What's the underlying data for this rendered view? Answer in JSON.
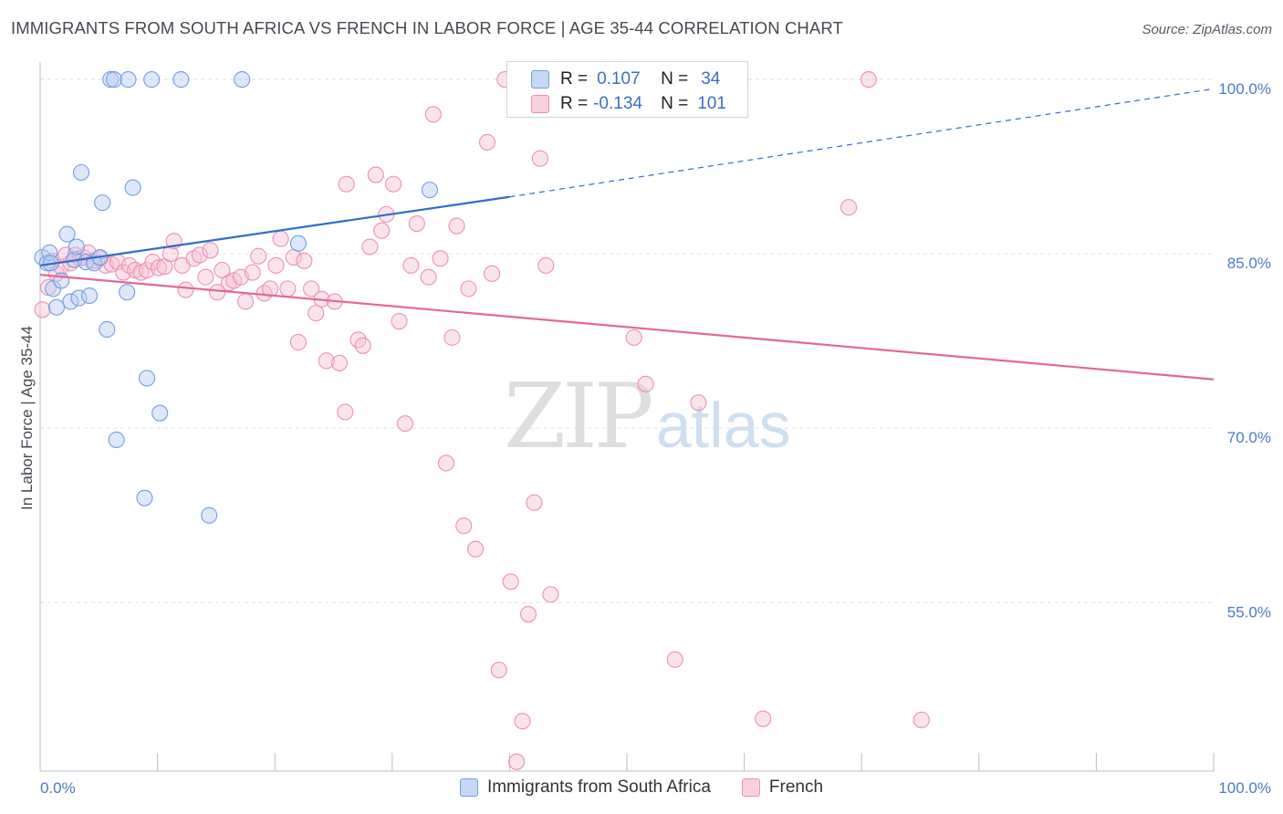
{
  "title": "IMMIGRANTS FROM SOUTH AFRICA VS FRENCH IN LABOR FORCE | AGE 35-44 CORRELATION CHART",
  "source": "Source: ZipAtlas.com",
  "watermark": {
    "zip": "ZIP",
    "atlas": "atlas"
  },
  "colors": {
    "blue": "#6f9fe3",
    "blue_fill": "#b5cdf3",
    "pink": "#ec90b3",
    "pink_fill": "#f6c1d4",
    "blue_line": "#2f6dcb",
    "pink_line": "#e2689a",
    "tick": "#4a7bc8"
  },
  "stats": {
    "row1": {
      "r_label": "R =",
      "r_value": "0.107",
      "n_label": "N =",
      "n_value": "34"
    },
    "row2": {
      "r_label": "R =",
      "r_value": "-0.134",
      "n_label": "N =",
      "n_value": "101"
    }
  },
  "legend": {
    "series1": "Immigrants from South Africa",
    "series2": "French"
  },
  "chart_data": {
    "type": "scatter",
    "title": "IMMIGRANTS FROM SOUTH AFRICA VS FRENCH IN LABOR FORCE | AGE 35-44 CORRELATION CHART",
    "xlabel": "",
    "ylabel": "In Labor Force | Age 35-44",
    "xlim": [
      0,
      100
    ],
    "ylim": [
      40.5,
      101.5
    ],
    "x_tick_labels": [
      "0.0%",
      "100.0%"
    ],
    "y_ticks": [
      55,
      70,
      85,
      100
    ],
    "y_tick_labels": [
      "55.0%",
      "70.0%",
      "85.0%",
      "100.0%"
    ],
    "grid": true,
    "legend_position": "bottom",
    "series": [
      {
        "name": "Immigrants from South Africa",
        "color": "#6f9fe3",
        "trend": {
          "x": [
            0,
            40
          ],
          "y": [
            84.0,
            89.9
          ],
          "dashed_to": [
            100,
            99.2
          ]
        },
        "points": [
          [
            0.2,
            84.7
          ],
          [
            0.6,
            84.2
          ],
          [
            0.8,
            85.1
          ],
          [
            1.1,
            82.0
          ],
          [
            1.4,
            80.4
          ],
          [
            1.8,
            82.7
          ],
          [
            2.3,
            86.7
          ],
          [
            2.6,
            80.9
          ],
          [
            2.9,
            84.5
          ],
          [
            3.1,
            85.6
          ],
          [
            3.3,
            81.2
          ],
          [
            3.5,
            92.0
          ],
          [
            3.9,
            84.3
          ],
          [
            4.2,
            81.4
          ],
          [
            4.6,
            84.2
          ],
          [
            5.1,
            84.7
          ],
          [
            5.3,
            89.4
          ],
          [
            5.7,
            78.5
          ],
          [
            6.0,
            100.0
          ],
          [
            6.3,
            100.0
          ],
          [
            6.5,
            69.0
          ],
          [
            7.5,
            100.0
          ],
          [
            7.4,
            81.7
          ],
          [
            7.9,
            90.7
          ],
          [
            8.9,
            64.0
          ],
          [
            9.1,
            74.3
          ],
          [
            9.5,
            100.0
          ],
          [
            10.2,
            71.3
          ],
          [
            12.0,
            100.0
          ],
          [
            14.4,
            62.5
          ],
          [
            17.2,
            100.0
          ],
          [
            22.0,
            85.9
          ],
          [
            33.2,
            90.5
          ],
          [
            0.9,
            84.2
          ]
        ]
      },
      {
        "name": "French",
        "color": "#ec90b3",
        "trend": {
          "x": [
            0,
            100
          ],
          "y": [
            83.2,
            74.2
          ]
        },
        "points": [
          [
            0.2,
            80.2
          ],
          [
            0.7,
            82.1
          ],
          [
            1.0,
            84.4
          ],
          [
            1.4,
            83.3
          ],
          [
            1.8,
            83.9
          ],
          [
            2.2,
            84.9
          ],
          [
            2.6,
            84.2
          ],
          [
            3.0,
            84.9
          ],
          [
            3.4,
            84.6
          ],
          [
            3.7,
            84.7
          ],
          [
            4.1,
            85.1
          ],
          [
            4.6,
            84.4
          ],
          [
            5.1,
            84.6
          ],
          [
            5.6,
            84.0
          ],
          [
            6.1,
            84.1
          ],
          [
            6.6,
            84.3
          ],
          [
            7.1,
            83.4
          ],
          [
            7.6,
            84.0
          ],
          [
            8.1,
            83.6
          ],
          [
            8.6,
            83.4
          ],
          [
            9.1,
            83.6
          ],
          [
            9.6,
            84.3
          ],
          [
            10.1,
            83.8
          ],
          [
            10.6,
            83.9
          ],
          [
            11.1,
            85.0
          ],
          [
            11.4,
            86.1
          ],
          [
            12.1,
            84.0
          ],
          [
            12.4,
            81.9
          ],
          [
            13.1,
            84.6
          ],
          [
            13.6,
            84.9
          ],
          [
            14.1,
            83.0
          ],
          [
            14.5,
            85.3
          ],
          [
            15.1,
            81.7
          ],
          [
            15.5,
            83.6
          ],
          [
            16.1,
            82.5
          ],
          [
            16.5,
            82.7
          ],
          [
            17.1,
            83.0
          ],
          [
            17.5,
            80.9
          ],
          [
            18.1,
            83.4
          ],
          [
            18.6,
            84.8
          ],
          [
            19.1,
            81.6
          ],
          [
            19.6,
            82.0
          ],
          [
            20.1,
            84.0
          ],
          [
            20.5,
            86.3
          ],
          [
            21.1,
            82.0
          ],
          [
            21.6,
            84.7
          ],
          [
            22.0,
            77.4
          ],
          [
            22.5,
            84.4
          ],
          [
            23.1,
            82.0
          ],
          [
            23.5,
            79.9
          ],
          [
            24.0,
            81.1
          ],
          [
            24.4,
            75.8
          ],
          [
            25.1,
            80.9
          ],
          [
            25.5,
            75.6
          ],
          [
            26.1,
            91.0
          ],
          [
            26.0,
            71.4
          ],
          [
            27.1,
            77.6
          ],
          [
            27.5,
            77.1
          ],
          [
            28.1,
            85.6
          ],
          [
            28.6,
            91.8
          ],
          [
            29.1,
            87.0
          ],
          [
            29.5,
            88.4
          ],
          [
            30.1,
            91.0
          ],
          [
            30.6,
            79.2
          ],
          [
            31.1,
            70.4
          ],
          [
            31.6,
            84.0
          ],
          [
            32.1,
            87.6
          ],
          [
            33.1,
            83.0
          ],
          [
            33.5,
            97.0
          ],
          [
            34.1,
            84.6
          ],
          [
            34.6,
            67.0
          ],
          [
            35.1,
            77.8
          ],
          [
            35.5,
            87.4
          ],
          [
            36.1,
            61.6
          ],
          [
            36.5,
            82.0
          ],
          [
            37.1,
            59.6
          ],
          [
            38.1,
            94.6
          ],
          [
            38.5,
            83.3
          ],
          [
            39.1,
            49.2
          ],
          [
            39.6,
            100.0
          ],
          [
            40.1,
            56.8
          ],
          [
            40.6,
            41.3
          ],
          [
            41.1,
            44.8
          ],
          [
            41.6,
            54.0
          ],
          [
            42.1,
            63.6
          ],
          [
            42.6,
            93.2
          ],
          [
            43.1,
            84.0
          ],
          [
            43.5,
            55.7
          ],
          [
            46.1,
            100.0
          ],
          [
            46.4,
            100.0
          ],
          [
            48.1,
            100.0
          ],
          [
            50.1,
            100.0
          ],
          [
            50.6,
            77.8
          ],
          [
            51.6,
            73.8
          ],
          [
            54.1,
            50.1
          ],
          [
            55.1,
            100.0
          ],
          [
            56.1,
            72.2
          ],
          [
            61.6,
            45.0
          ],
          [
            68.9,
            89.0
          ],
          [
            70.6,
            100.0
          ],
          [
            75.1,
            44.9
          ]
        ]
      }
    ]
  }
}
